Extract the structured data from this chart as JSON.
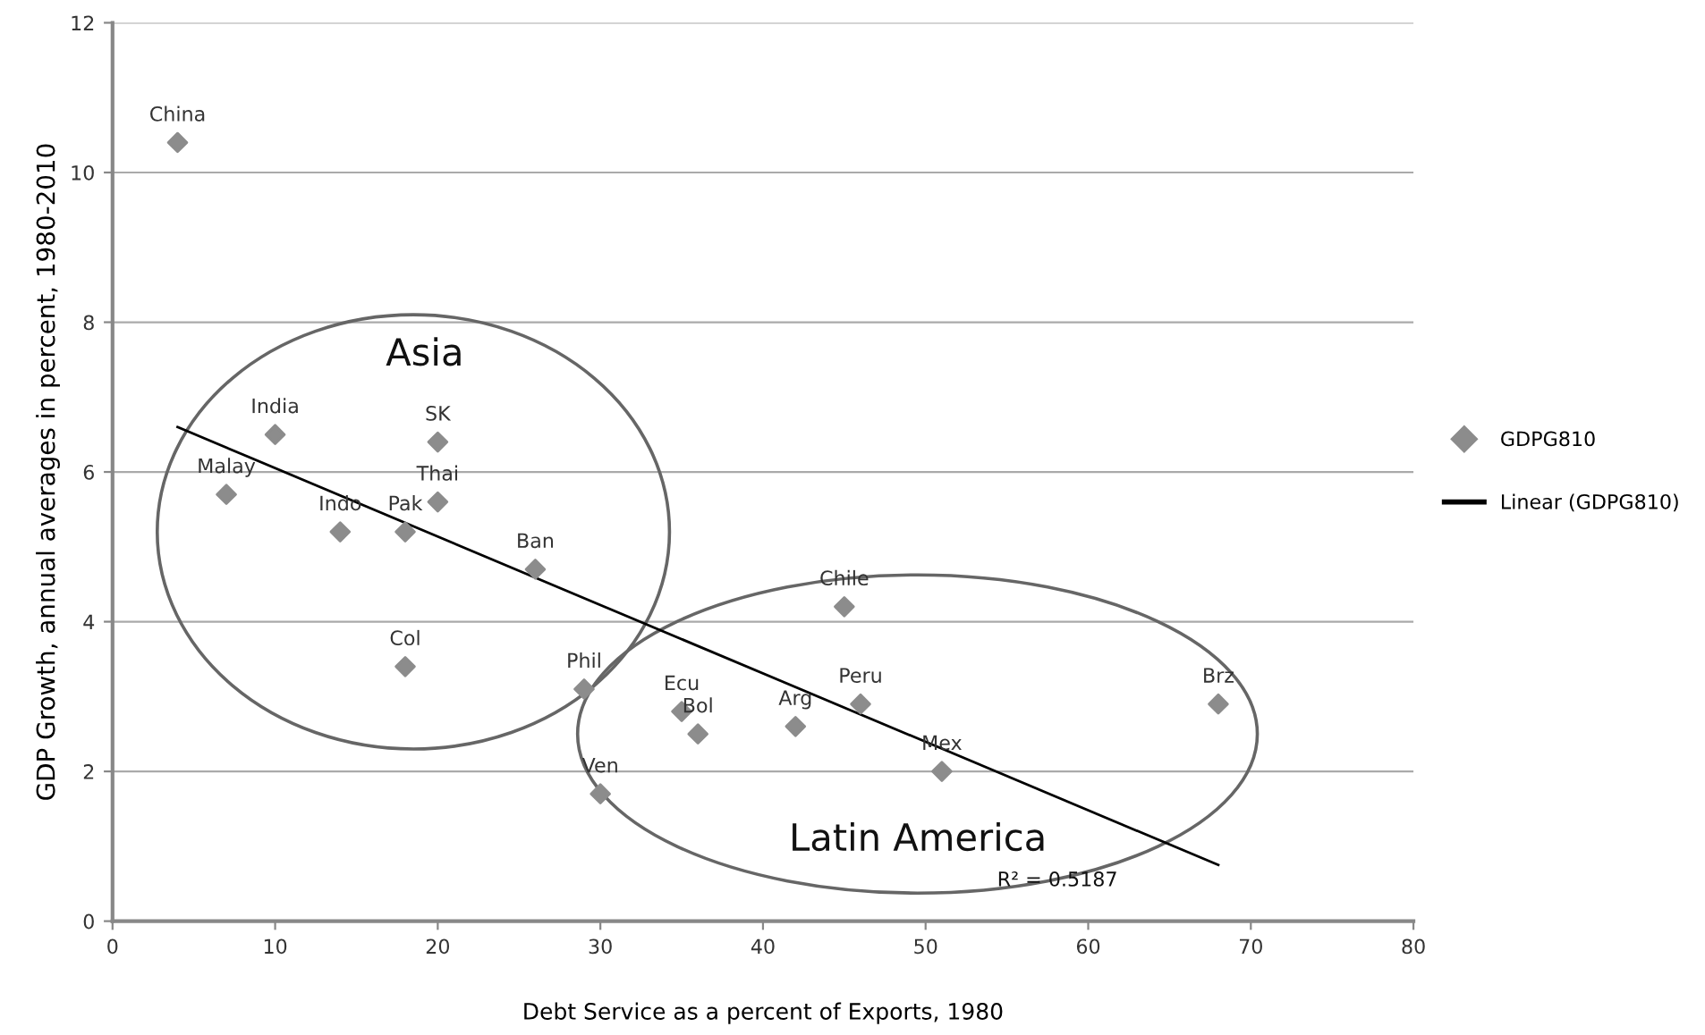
{
  "chart_data": {
    "type": "scatter",
    "xlabel": "Debt Service as a percent of Exports, 1980",
    "ylabel": "GDP Growth, annual averages in percent, 1980-2010",
    "xlim": [
      0,
      80
    ],
    "xticks": [
      0,
      10,
      20,
      30,
      40,
      50,
      60,
      70,
      80
    ],
    "ylim": [
      0,
      12
    ],
    "yticks": [
      0,
      2,
      4,
      6,
      8,
      10,
      12
    ],
    "grid": "y",
    "legend": "right",
    "marker": "diamond",
    "series": [
      {
        "name": "GDPG810",
        "color": "#8c8c8c",
        "x": [
          4,
          7,
          10,
          14,
          18,
          20,
          20,
          26,
          18,
          29,
          35,
          36,
          30,
          45,
          42,
          46,
          51,
          68
        ],
        "values": [
          10.4,
          5.7,
          6.5,
          5.2,
          5.2,
          6.4,
          5.6,
          4.7,
          3.4,
          3.1,
          2.8,
          2.5,
          1.7,
          4.2,
          2.6,
          2.9,
          2.0,
          2.9
        ]
      },
      {
        "name": "Linear (GDPG810)",
        "type": "line",
        "marker": "none",
        "line_style": "solid",
        "color": "#000000",
        "x": [
          4,
          68
        ],
        "values": [
          6.6,
          0.75
        ]
      }
    ],
    "annotations": [
      {
        "text": "China",
        "x": 4,
        "y": 10.4
      },
      {
        "text": "Malay",
        "x": 7,
        "y": 5.7
      },
      {
        "text": "India",
        "x": 10,
        "y": 6.5
      },
      {
        "text": "Indo",
        "x": 14,
        "y": 5.2
      },
      {
        "text": "Pak",
        "x": 18,
        "y": 5.2
      },
      {
        "text": "SK",
        "x": 20,
        "y": 6.4
      },
      {
        "text": "Thai",
        "x": 20,
        "y": 5.6
      },
      {
        "text": "Ban",
        "x": 26,
        "y": 4.7
      },
      {
        "text": "Col",
        "x": 18,
        "y": 3.4
      },
      {
        "text": "Phil",
        "x": 29,
        "y": 3.1
      },
      {
        "text": "Ecu",
        "x": 35,
        "y": 2.8
      },
      {
        "text": "Bol",
        "x": 36,
        "y": 2.5
      },
      {
        "text": "Ven",
        "x": 30,
        "y": 1.7
      },
      {
        "text": "Chile",
        "x": 45,
        "y": 4.2
      },
      {
        "text": "Arg",
        "x": 42,
        "y": 2.6
      },
      {
        "text": "Peru",
        "x": 46,
        "y": 2.9
      },
      {
        "text": "Mex",
        "x": 51,
        "y": 2.0
      },
      {
        "text": "Brz",
        "x": 68,
        "y": 2.9
      },
      "Asia",
      "Latin America",
      "R² = 0.5187"
    ]
  }
}
